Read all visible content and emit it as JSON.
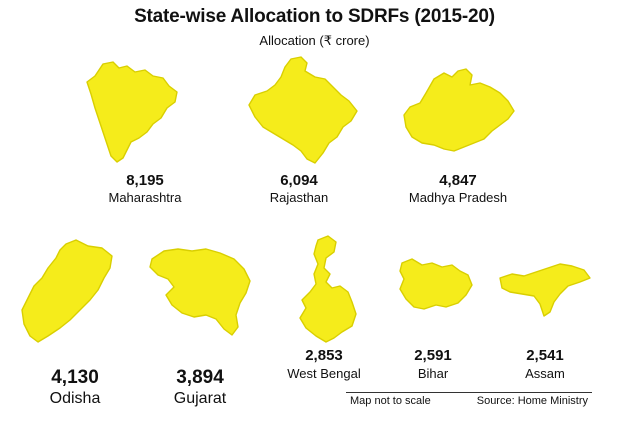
{
  "header": {
    "title": "State-wise Allocation to SDRFs (2015-20)",
    "subtitle": "Allocation (₹ crore)"
  },
  "fill_color": "#f5ec1b",
  "states": [
    {
      "id": "maharashtra",
      "value": "8,195",
      "name": "Maharashtra"
    },
    {
      "id": "rajasthan",
      "value": "6,094",
      "name": "Rajasthan"
    },
    {
      "id": "madhya-pradesh",
      "value": "4,847",
      "name": "Madhya Pradesh"
    },
    {
      "id": "odisha",
      "value": "4,130",
      "name": "Odisha"
    },
    {
      "id": "gujarat",
      "value": "3,894",
      "name": "Gujarat"
    },
    {
      "id": "west-bengal",
      "value": "2,853",
      "name": "West Bengal"
    },
    {
      "id": "bihar",
      "value": "2,591",
      "name": "Bihar"
    },
    {
      "id": "assam",
      "value": "2,541",
      "name": "Assam"
    }
  ],
  "footer": {
    "note": "Map not to scale",
    "source": "Source: Home Ministry"
  }
}
